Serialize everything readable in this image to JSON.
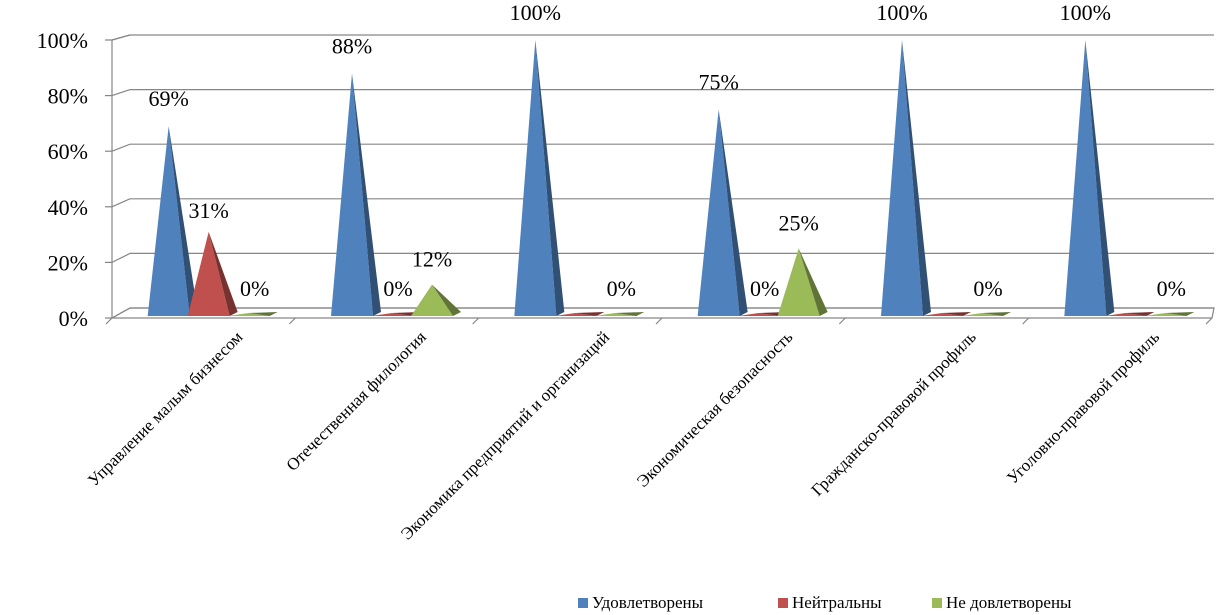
{
  "chart_data": {
    "type": "bar",
    "bar_shape": "pyramid",
    "categories": [
      "Управление малым бизнесом",
      "Отечественная филология",
      "Экономика предприятий и организаций",
      "Экономическая безопасность",
      "Гражданско-правовой профиль",
      "Уголовно-правовой профиль"
    ],
    "series": [
      {
        "name": "Удовлетворены",
        "color": "#4F81BD",
        "values": [
          69,
          88,
          100,
          75,
          100,
          100
        ]
      },
      {
        "name": "Нейтральны",
        "color": "#C0504D",
        "values": [
          31,
          0,
          0,
          0,
          0,
          0
        ]
      },
      {
        "name": "Не довлетворены",
        "color": "#9BBB59",
        "values": [
          0,
          12,
          0,
          25,
          0,
          0
        ]
      }
    ],
    "value_labels": [
      [
        "69%",
        "88%",
        "100%",
        "75%",
        "100%",
        "100%"
      ],
      [
        "31%",
        "0%",
        "",
        "0%",
        "",
        ""
      ],
      [
        "0%",
        "12%",
        "0%",
        "25%",
        "0%",
        "0%"
      ]
    ],
    "y_ticks": [
      "0%",
      "20%",
      "40%",
      "60%",
      "80%",
      "100%"
    ],
    "ylim": [
      0,
      100
    ],
    "grid": true,
    "legend_position": "bottom-right"
  }
}
